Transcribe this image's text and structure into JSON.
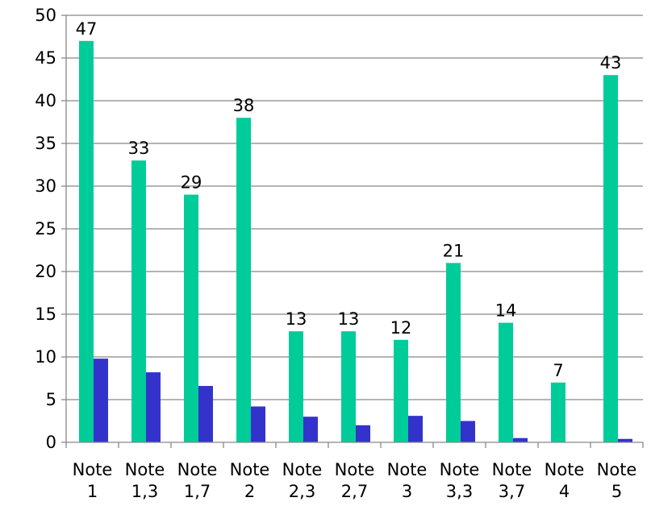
{
  "chart_data": {
    "type": "bar",
    "categories": [
      "Note 1",
      "Note 1,3",
      "Note 1,7",
      "Note 2",
      "Note 2,3",
      "Note 2,7",
      "Note 3",
      "Note 3,3",
      "Note 3,7",
      "Note 4",
      "Note 5"
    ],
    "category_lines": [
      [
        "Note",
        "1"
      ],
      [
        "Note",
        "1,3"
      ],
      [
        "Note",
        "1,7"
      ],
      [
        "Note",
        "2"
      ],
      [
        "Note",
        "2,3"
      ],
      [
        "Note",
        "2,7"
      ],
      [
        "Note",
        "3"
      ],
      [
        "Note",
        "3,3"
      ],
      [
        "Note",
        "3,7"
      ],
      [
        "Note",
        "4"
      ],
      [
        "Note",
        "5"
      ]
    ],
    "series": [
      {
        "values": [
          47,
          33,
          29,
          38,
          13,
          13,
          12,
          21,
          14,
          7,
          43
        ],
        "color": "#00cc99",
        "data_labels": true
      },
      {
        "values": [
          9.8,
          8.2,
          6.6,
          4.2,
          3.0,
          2.0,
          3.1,
          2.5,
          0.5,
          0,
          0.4
        ],
        "color": "#3333cc",
        "data_labels": false
      }
    ],
    "yticks": [
      0,
      5,
      10,
      15,
      20,
      25,
      30,
      35,
      40,
      45,
      50
    ],
    "ylim": [
      0,
      50
    ],
    "grid": true,
    "legend": "none",
    "title": "",
    "xlabel": "",
    "ylabel": ""
  }
}
